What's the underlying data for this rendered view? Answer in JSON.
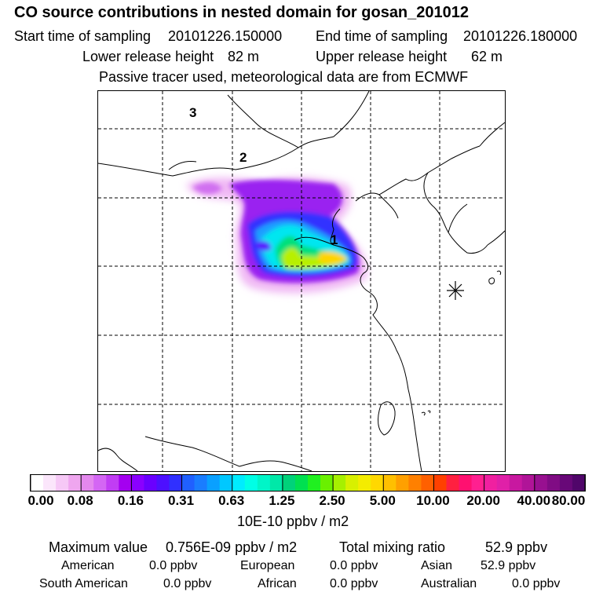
{
  "title": "CO  source contributions in nested domain for gosan_201012",
  "sampling": {
    "start_label": "Start time of sampling",
    "start_value": "20101226.150000",
    "end_label": "End time of sampling",
    "end_value": "20101226.180000"
  },
  "release": {
    "lower_label": "Lower release height",
    "lower_value": "82 m",
    "upper_label": "Upper release height",
    "upper_value": "62 m"
  },
  "note": "Passive tracer used, meteorological data are from ECMWF",
  "map": {
    "labels": [
      "3",
      "2",
      "1"
    ],
    "receptor_marker": "asterisk-icon"
  },
  "colorbar": {
    "ticks": [
      "0.00",
      "0.08",
      "0.16",
      "0.31",
      "0.63",
      "1.25",
      "2.50",
      "5.00",
      "10.00",
      "20.00",
      "40.00",
      "80.00"
    ],
    "unit": "10E-10 ppbv / m2",
    "colors": [
      "#ffffff",
      "#fbe6fb",
      "#f6c8f6",
      "#efa6ef",
      "#e488ee",
      "#d466f4",
      "#c13df4",
      "#a400f0",
      "#8a00ff",
      "#6a00ff",
      "#4d10ff",
      "#3030ff",
      "#2060ff",
      "#1a7dff",
      "#0aa0ff",
      "#00c8ff",
      "#00ecff",
      "#00ffe6",
      "#00f5c8",
      "#00e8a8",
      "#00d27a",
      "#00e050",
      "#20f020",
      "#6af000",
      "#a6f000",
      "#d8f000",
      "#f4ec00",
      "#ffd800",
      "#ffc000",
      "#ffa000",
      "#ff8000",
      "#ff6000",
      "#ff4000",
      "#ff2040",
      "#ff1070",
      "#ff2090",
      "#f020a0",
      "#e020a8",
      "#c818a0",
      "#b01498",
      "#981090",
      "#800c84",
      "#680878",
      "#50066a"
    ]
  },
  "summary": {
    "max_label": "Maximum value",
    "max_value": "0.756E-09 ppbv / m2",
    "total_label": "Total mixing ratio",
    "total_value": "52.9 ppbv",
    "regions": [
      {
        "name": "American",
        "value": "0.0 ppbv"
      },
      {
        "name": "European",
        "value": "0.0 ppbv"
      },
      {
        "name": "Asian",
        "value": "52.9 ppbv"
      },
      {
        "name": "South American",
        "value": "0.0 ppbv"
      },
      {
        "name": "African",
        "value": "0.0 ppbv"
      },
      {
        "name": "Australian",
        "value": "0.0 ppbv"
      }
    ]
  }
}
